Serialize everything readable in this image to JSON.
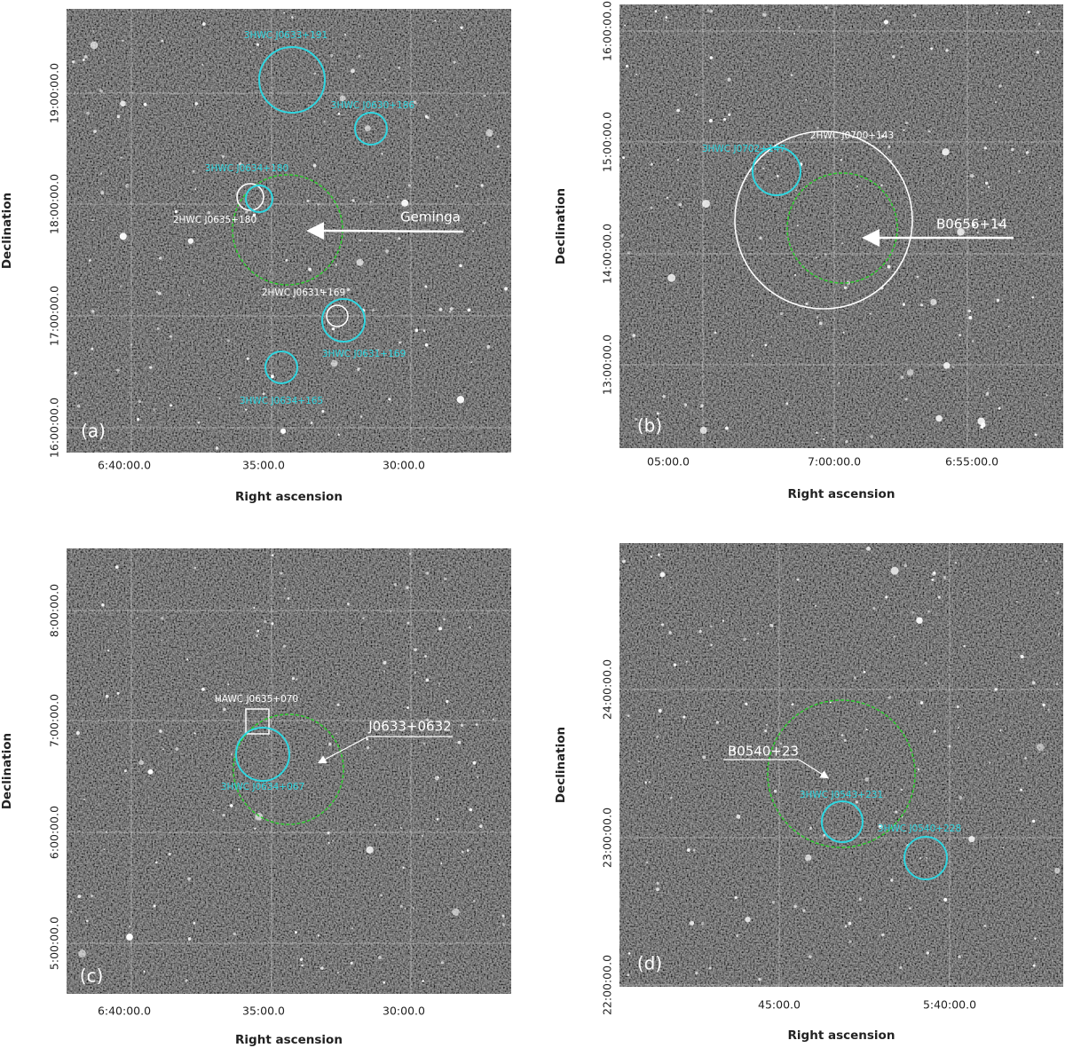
{
  "panels": [
    {
      "label": "(a)",
      "x_axis_label": "Right ascension",
      "y_axis_label": "Declination",
      "x_ticks": [
        "6:40:00.0",
        "35:00.0",
        "30:00.0"
      ],
      "y_ticks": [
        "19:00:00.0",
        "18:00:00.0",
        "17:00:00.0",
        "16:00:00.0"
      ],
      "annotations": [
        "3HWC J0633+191",
        "3HWC J0630+186",
        "3HWC J0634+180",
        "2HWC J0635+180",
        "Geminga",
        "2HWC J0631+169",
        "3HWC J0631+169",
        "3HWC J0634+165"
      ]
    },
    {
      "label": "(b)",
      "x_axis_label": "Right ascension",
      "y_axis_label": "Declination",
      "x_ticks": [
        "05:00.0",
        "7:00:00.0",
        "6:55:00.0"
      ],
      "y_ticks": [
        "16:00:00.0",
        "15:00:00.0",
        "14:00:00.0",
        "13:00:00.0"
      ],
      "annotations": [
        "2HWC J0700+143",
        "3HWC J0702+147",
        "B0656+14"
      ]
    },
    {
      "label": "(c)",
      "x_axis_label": "Right ascension",
      "y_axis_label": "Declination",
      "x_ticks": [
        "6:40:00.0",
        "35:00.0",
        "30:00.0"
      ],
      "y_ticks": [
        "8:00:00.0",
        "7:00:00.0",
        "6:00:00.0",
        "5:00:00.0"
      ],
      "annotations": [
        "HAWC J0635+070",
        "J0633+0632",
        "3HWC J0634+067"
      ]
    },
    {
      "label": "(d)",
      "x_axis_label": "Right ascension",
      "y_axis_label": "Declination",
      "x_ticks": [
        "45:00.0",
        "5:40:00.0"
      ],
      "y_ticks": [
        "24:00:00.0",
        "23:00:00.0",
        "22:00:00.0"
      ],
      "annotations": [
        "B0540+23",
        "3HWC J0543+231",
        "3HWC J0540+228"
      ]
    }
  ]
}
